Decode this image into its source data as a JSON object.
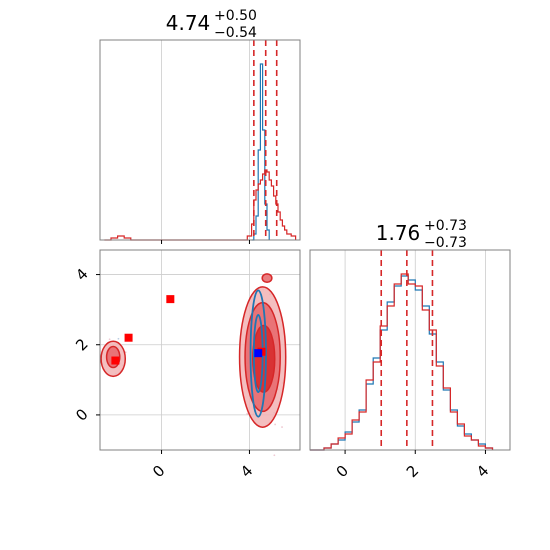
{
  "colors": {
    "red": "#d62728",
    "blue": "#1f77b4",
    "red_fill_light": "#f2b3b4",
    "red_fill_mid": "#e6666a",
    "red_fill_dark": "#d62728",
    "marker_red": "#ff0000",
    "marker_blue": "#0000ff",
    "grid": "#cccccc",
    "frame": "#808080"
  },
  "chart_data": {
    "type": "corner",
    "grid": true,
    "panels": [
      {
        "id": "hist-param-1",
        "type": "histogram",
        "title": {
          "value": "4.74",
          "plus": "+0.50",
          "minus": "−0.54"
        },
        "x_range": [
          -2.8,
          6.3
        ],
        "x_ticks_labeled": false,
        "x_ticks": [
          0,
          4
        ],
        "quantile_lines": [
          4.2,
          4.74,
          5.24
        ],
        "series": [
          {
            "name": "",
            "color": "blue",
            "bins": [
              [
                4.1,
                0.0
              ],
              [
                4.2,
                0.03
              ],
              [
                4.3,
                0.12
              ],
              [
                4.4,
                0.45
              ],
              [
                4.5,
                0.88
              ],
              [
                4.6,
                0.55
              ],
              [
                4.7,
                0.18
              ],
              [
                4.8,
                0.05
              ],
              [
                4.9,
                0.0
              ]
            ]
          },
          {
            "name": "",
            "color": "red",
            "bins": [
              [
                -2.6,
                0.0
              ],
              [
                -2.3,
                0.01
              ],
              [
                -2.0,
                0.02
              ],
              [
                -1.7,
                0.01
              ],
              [
                -1.4,
                0.0
              ],
              [
                3.7,
                0.0
              ],
              [
                3.9,
                0.02
              ],
              [
                4.1,
                0.08
              ],
              [
                4.2,
                0.2
              ],
              [
                4.3,
                0.25
              ],
              [
                4.4,
                0.28
              ],
              [
                4.5,
                0.3
              ],
              [
                4.6,
                0.33
              ],
              [
                4.7,
                0.35
              ],
              [
                4.8,
                0.34
              ],
              [
                4.9,
                0.3
              ],
              [
                5.0,
                0.27
              ],
              [
                5.1,
                0.22
              ],
              [
                5.2,
                0.18
              ],
              [
                5.3,
                0.14
              ],
              [
                5.4,
                0.1
              ],
              [
                5.5,
                0.07
              ],
              [
                5.6,
                0.05
              ],
              [
                5.7,
                0.03
              ],
              [
                5.9,
                0.02
              ],
              [
                6.1,
                0.0
              ]
            ]
          }
        ]
      },
      {
        "id": "scatter-2d",
        "type": "contour",
        "x_range": [
          -2.8,
          6.3
        ],
        "y_range": [
          -1.0,
          4.7
        ],
        "x_ticks": [
          0,
          4
        ],
        "x_tick_labels": [
          "0",
          "4"
        ],
        "y_ticks": [
          0,
          2,
          4
        ],
        "y_tick_labels": [
          "0",
          "2",
          "4"
        ],
        "red_markers": [
          [
            -2.1,
            1.55
          ],
          [
            -1.5,
            2.2
          ],
          [
            0.4,
            3.3
          ],
          [
            4.55,
            1.8
          ]
        ],
        "blue_marker": [
          4.4,
          1.76
        ],
        "red_contours": [
          {
            "cx": 4.6,
            "cy": 1.65,
            "rx": 1.05,
            "ry": 2.0,
            "level": "light"
          },
          {
            "cx": 4.6,
            "cy": 1.65,
            "rx": 0.8,
            "ry": 1.55,
            "level": "mid"
          },
          {
            "cx": 4.65,
            "cy": 1.6,
            "rx": 0.5,
            "ry": 0.95,
            "level": "dark"
          },
          {
            "cx": 4.8,
            "cy": 3.9,
            "rx": 0.22,
            "ry": 0.12,
            "level": "mid"
          },
          {
            "cx": -2.2,
            "cy": 1.6,
            "rx": 0.55,
            "ry": 0.5,
            "level": "light"
          },
          {
            "cx": -2.2,
            "cy": 1.65,
            "rx": 0.3,
            "ry": 0.3,
            "level": "mid"
          }
        ],
        "blue_contours": [
          {
            "cx": 4.4,
            "cy": 1.75,
            "rx": 0.35,
            "ry": 1.8
          },
          {
            "cx": 4.4,
            "cy": 1.75,
            "rx": 0.2,
            "ry": 1.1
          }
        ]
      },
      {
        "id": "hist-param-2",
        "type": "histogram",
        "title": {
          "value": "1.76",
          "plus": "+0.73",
          "minus": "−0.73"
        },
        "x_range": [
          -1.0,
          4.7
        ],
        "x_ticks": [
          0,
          2,
          4
        ],
        "x_tick_labels": [
          "0",
          "2",
          "4"
        ],
        "quantile_lines": [
          1.03,
          1.76,
          2.49
        ],
        "series": [
          {
            "name": "",
            "color": "blue",
            "bins": [
              [
                -1.0,
                0.0
              ],
              [
                -0.6,
                0.01
              ],
              [
                -0.4,
                0.03
              ],
              [
                -0.2,
                0.05
              ],
              [
                0.0,
                0.09
              ],
              [
                0.2,
                0.14
              ],
              [
                0.4,
                0.2
              ],
              [
                0.6,
                0.33
              ],
              [
                0.8,
                0.46
              ],
              [
                1.0,
                0.6
              ],
              [
                1.2,
                0.74
              ],
              [
                1.4,
                0.82
              ],
              [
                1.6,
                0.87
              ],
              [
                1.8,
                0.85
              ],
              [
                2.0,
                0.8
              ],
              [
                2.2,
                0.72
              ],
              [
                2.4,
                0.58
              ],
              [
                2.6,
                0.44
              ],
              [
                2.8,
                0.3
              ],
              [
                3.0,
                0.2
              ],
              [
                3.2,
                0.12
              ],
              [
                3.4,
                0.08
              ],
              [
                3.6,
                0.05
              ],
              [
                3.8,
                0.03
              ],
              [
                4.0,
                0.01
              ],
              [
                4.2,
                0.0
              ]
            ]
          },
          {
            "name": "",
            "color": "red",
            "bins": [
              [
                -1.0,
                0.0
              ],
              [
                -0.6,
                0.01
              ],
              [
                -0.4,
                0.03
              ],
              [
                -0.2,
                0.06
              ],
              [
                0.0,
                0.08
              ],
              [
                0.2,
                0.15
              ],
              [
                0.4,
                0.19
              ],
              [
                0.6,
                0.35
              ],
              [
                0.8,
                0.44
              ],
              [
                1.0,
                0.62
              ],
              [
                1.2,
                0.72
              ],
              [
                1.4,
                0.83
              ],
              [
                1.6,
                0.88
              ],
              [
                1.8,
                0.83
              ],
              [
                2.0,
                0.82
              ],
              [
                2.2,
                0.7
              ],
              [
                2.4,
                0.6
              ],
              [
                2.6,
                0.42
              ],
              [
                2.8,
                0.31
              ],
              [
                3.0,
                0.19
              ],
              [
                3.2,
                0.13
              ],
              [
                3.4,
                0.07
              ],
              [
                3.6,
                0.05
              ],
              [
                3.8,
                0.02
              ],
              [
                4.0,
                0.01
              ],
              [
                4.2,
                0.0
              ]
            ]
          }
        ]
      }
    ]
  }
}
